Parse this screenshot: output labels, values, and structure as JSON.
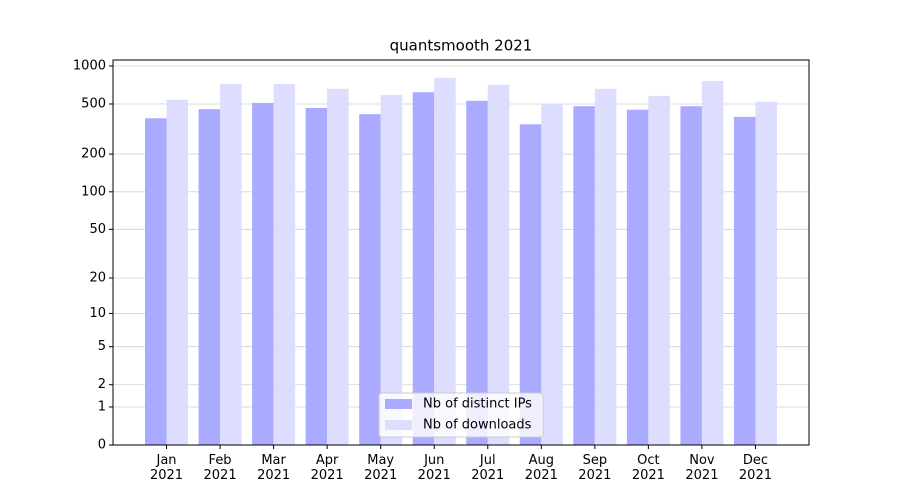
{
  "chart_data": {
    "type": "bar",
    "title": "quantsmooth 2021",
    "categories": [
      "Jan\n2021",
      "Feb\n2021",
      "Mar\n2021",
      "Apr\n2021",
      "May\n2021",
      "Jun\n2021",
      "Jul\n2021",
      "Aug\n2021",
      "Sep\n2021",
      "Oct\n2021",
      "Nov\n2021",
      "Dec\n2021"
    ],
    "series": [
      {
        "name": "Nb of distinct IPs",
        "color": "#aaaaff",
        "values": [
          385,
          455,
          510,
          465,
          415,
          620,
          530,
          345,
          480,
          450,
          480,
          395
        ]
      },
      {
        "name": "Nb of downloads",
        "color": "#ddddff",
        "values": [
          540,
          720,
          720,
          660,
          590,
          805,
          710,
          500,
          660,
          580,
          760,
          520
        ]
      }
    ],
    "yscale": "log1p",
    "ylim": [
      0,
      1116
    ],
    "yticks": [
      0,
      1,
      2,
      5,
      10,
      20,
      50,
      100,
      200,
      500,
      1000
    ],
    "grid": true,
    "legend": "lower center"
  }
}
